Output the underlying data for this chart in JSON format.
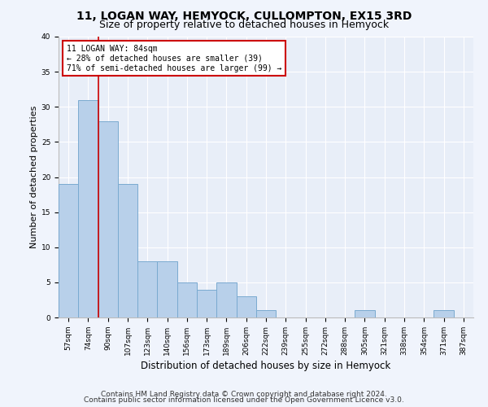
{
  "title": "11, LOGAN WAY, HEMYOCK, CULLOMPTON, EX15 3RD",
  "subtitle": "Size of property relative to detached houses in Hemyock",
  "xlabel": "Distribution of detached houses by size in Hemyock",
  "ylabel": "Number of detached properties",
  "footnote1": "Contains HM Land Registry data © Crown copyright and database right 2024.",
  "footnote2": "Contains public sector information licensed under the Open Government Licence v3.0.",
  "annotation_line1": "11 LOGAN WAY: 84sqm",
  "annotation_line2": "← 28% of detached houses are smaller (39)",
  "annotation_line3": "71% of semi-detached houses are larger (99) →",
  "bar_labels": [
    "57sqm",
    "74sqm",
    "90sqm",
    "107sqm",
    "123sqm",
    "140sqm",
    "156sqm",
    "173sqm",
    "189sqm",
    "206sqm",
    "222sqm",
    "239sqm",
    "255sqm",
    "272sqm",
    "288sqm",
    "305sqm",
    "321sqm",
    "338sqm",
    "354sqm",
    "371sqm",
    "387sqm"
  ],
  "bar_values": [
    19,
    31,
    28,
    19,
    8,
    8,
    5,
    4,
    5,
    3,
    1,
    0,
    0,
    0,
    0,
    1,
    0,
    0,
    0,
    1,
    0
  ],
  "bar_color": "#b8d0ea",
  "bar_edge_color": "#7aaad0",
  "red_line_x": 1.5,
  "ylim": [
    0,
    40
  ],
  "yticks": [
    0,
    5,
    10,
    15,
    20,
    25,
    30,
    35,
    40
  ],
  "bg_color": "#e8eef8",
  "fig_color": "#f0f4fc",
  "grid_color": "#ffffff",
  "annotation_box_color": "#ffffff",
  "annotation_box_edge": "#cc0000",
  "red_line_color": "#cc0000",
  "title_fontsize": 10,
  "subtitle_fontsize": 9,
  "footnote_fontsize": 6.5,
  "tick_fontsize": 6.5,
  "ylabel_fontsize": 8,
  "xlabel_fontsize": 8.5,
  "annot_fontsize": 7
}
